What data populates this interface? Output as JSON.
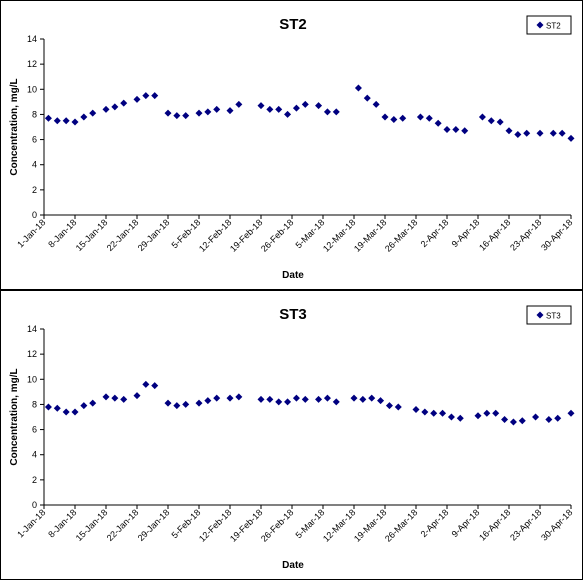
{
  "chart_data": [
    {
      "type": "scatter",
      "title": "ST2",
      "xlabel": "Date",
      "ylabel": "Concentration, mg/L",
      "ylim": [
        0,
        14
      ],
      "yticks": [
        0,
        2,
        4,
        6,
        8,
        10,
        12,
        14
      ],
      "xlim": [
        "2018-01-01",
        "2018-04-30"
      ],
      "xticks": [
        "1-Jan-18",
        "8-Jan-18",
        "15-Jan-18",
        "22-Jan-18",
        "29-Jan-18",
        "5-Feb-18",
        "12-Feb-18",
        "19-Feb-18",
        "26-Feb-18",
        "5-Mar-18",
        "12-Mar-18",
        "19-Mar-18",
        "26-Mar-18",
        "2-Apr-18",
        "9-Apr-18",
        "16-Apr-18",
        "23-Apr-18",
        "30-Apr-18"
      ],
      "legend": "top-right",
      "marker_color": "#000080",
      "series": [
        {
          "name": "ST2",
          "points": [
            [
              "2018-01-02",
              7.7
            ],
            [
              "2018-01-04",
              7.5
            ],
            [
              "2018-01-06",
              7.5
            ],
            [
              "2018-01-08",
              7.4
            ],
            [
              "2018-01-10",
              7.8
            ],
            [
              "2018-01-12",
              8.1
            ],
            [
              "2018-01-15",
              8.4
            ],
            [
              "2018-01-17",
              8.6
            ],
            [
              "2018-01-19",
              8.9
            ],
            [
              "2018-01-22",
              9.2
            ],
            [
              "2018-01-24",
              9.5
            ],
            [
              "2018-01-26",
              9.5
            ],
            [
              "2018-01-29",
              8.1
            ],
            [
              "2018-01-31",
              7.9
            ],
            [
              "2018-02-02",
              7.9
            ],
            [
              "2018-02-05",
              8.1
            ],
            [
              "2018-02-07",
              8.2
            ],
            [
              "2018-02-09",
              8.4
            ],
            [
              "2018-02-12",
              8.3
            ],
            [
              "2018-02-14",
              8.8
            ],
            [
              "2018-02-19",
              8.7
            ],
            [
              "2018-02-21",
              8.4
            ],
            [
              "2018-02-23",
              8.4
            ],
            [
              "2018-02-25",
              8.0
            ],
            [
              "2018-02-27",
              8.5
            ],
            [
              "2018-03-01",
              8.8
            ],
            [
              "2018-03-04",
              8.7
            ],
            [
              "2018-03-06",
              8.2
            ],
            [
              "2018-03-08",
              8.2
            ],
            [
              "2018-03-13",
              10.1
            ],
            [
              "2018-03-15",
              9.3
            ],
            [
              "2018-03-17",
              8.8
            ],
            [
              "2018-03-19",
              7.8
            ],
            [
              "2018-03-21",
              7.6
            ],
            [
              "2018-03-23",
              7.7
            ],
            [
              "2018-03-27",
              7.8
            ],
            [
              "2018-03-29",
              7.7
            ],
            [
              "2018-03-31",
              7.3
            ],
            [
              "2018-04-02",
              6.8
            ],
            [
              "2018-04-04",
              6.8
            ],
            [
              "2018-04-06",
              6.7
            ],
            [
              "2018-04-10",
              7.8
            ],
            [
              "2018-04-12",
              7.5
            ],
            [
              "2018-04-14",
              7.4
            ],
            [
              "2018-04-16",
              6.7
            ],
            [
              "2018-04-18",
              6.4
            ],
            [
              "2018-04-20",
              6.5
            ],
            [
              "2018-04-23",
              6.5
            ],
            [
              "2018-04-26",
              6.5
            ],
            [
              "2018-04-28",
              6.5
            ],
            [
              "2018-04-30",
              6.1
            ]
          ]
        }
      ]
    },
    {
      "type": "scatter",
      "title": "ST3",
      "xlabel": "Date",
      "ylabel": "Concentration, mg/L",
      "ylim": [
        0,
        14
      ],
      "yticks": [
        0,
        2,
        4,
        6,
        8,
        10,
        12,
        14
      ],
      "xlim": [
        "2018-01-01",
        "2018-04-30"
      ],
      "xticks": [
        "1-Jan-18",
        "8-Jan-18",
        "15-Jan-18",
        "22-Jan-18",
        "29-Jan-18",
        "5-Feb-18",
        "12-Feb-18",
        "19-Feb-18",
        "26-Feb-18",
        "5-Mar-18",
        "12-Mar-18",
        "19-Mar-18",
        "26-Mar-18",
        "2-Apr-18",
        "9-Apr-18",
        "16-Apr-18",
        "23-Apr-18",
        "30-Apr-18"
      ],
      "legend": "top-right",
      "marker_color": "#000080",
      "series": [
        {
          "name": "ST3",
          "points": [
            [
              "2018-01-02",
              7.8
            ],
            [
              "2018-01-04",
              7.7
            ],
            [
              "2018-01-06",
              7.4
            ],
            [
              "2018-01-08",
              7.4
            ],
            [
              "2018-01-10",
              7.9
            ],
            [
              "2018-01-12",
              8.1
            ],
            [
              "2018-01-15",
              8.6
            ],
            [
              "2018-01-17",
              8.5
            ],
            [
              "2018-01-19",
              8.4
            ],
            [
              "2018-01-22",
              8.7
            ],
            [
              "2018-01-24",
              9.6
            ],
            [
              "2018-01-26",
              9.5
            ],
            [
              "2018-01-29",
              8.1
            ],
            [
              "2018-01-31",
              7.9
            ],
            [
              "2018-02-02",
              8.0
            ],
            [
              "2018-02-05",
              8.1
            ],
            [
              "2018-02-07",
              8.3
            ],
            [
              "2018-02-09",
              8.5
            ],
            [
              "2018-02-12",
              8.5
            ],
            [
              "2018-02-14",
              8.6
            ],
            [
              "2018-02-19",
              8.4
            ],
            [
              "2018-02-21",
              8.4
            ],
            [
              "2018-02-23",
              8.2
            ],
            [
              "2018-02-25",
              8.2
            ],
            [
              "2018-02-27",
              8.5
            ],
            [
              "2018-03-01",
              8.4
            ],
            [
              "2018-03-04",
              8.4
            ],
            [
              "2018-03-06",
              8.5
            ],
            [
              "2018-03-08",
              8.2
            ],
            [
              "2018-03-12",
              8.5
            ],
            [
              "2018-03-14",
              8.4
            ],
            [
              "2018-03-16",
              8.5
            ],
            [
              "2018-03-18",
              8.3
            ],
            [
              "2018-03-20",
              7.9
            ],
            [
              "2018-03-22",
              7.8
            ],
            [
              "2018-03-26",
              7.6
            ],
            [
              "2018-03-28",
              7.4
            ],
            [
              "2018-03-30",
              7.3
            ],
            [
              "2018-04-01",
              7.3
            ],
            [
              "2018-04-03",
              7.0
            ],
            [
              "2018-04-05",
              6.9
            ],
            [
              "2018-04-09",
              7.1
            ],
            [
              "2018-04-11",
              7.3
            ],
            [
              "2018-04-13",
              7.3
            ],
            [
              "2018-04-15",
              6.8
            ],
            [
              "2018-04-17",
              6.6
            ],
            [
              "2018-04-19",
              6.7
            ],
            [
              "2018-04-22",
              7.0
            ],
            [
              "2018-04-25",
              6.8
            ],
            [
              "2018-04-27",
              6.9
            ],
            [
              "2018-04-30",
              7.3
            ]
          ]
        }
      ]
    }
  ]
}
